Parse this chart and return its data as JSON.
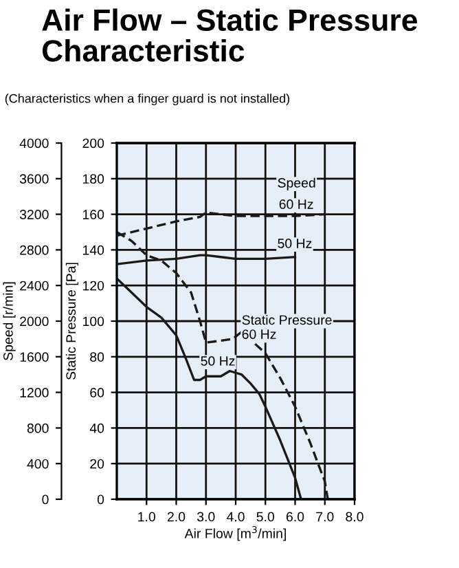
{
  "chart_data": {
    "type": "line",
    "title": "Air Flow – Static Pressure\nCharacteristic",
    "subtitle": "(Characteristics when a finger guard is not installed)",
    "xlabel": "Air Flow [m$^{3}$/min]",
    "ylabel": "Static Pressure [Pa]",
    "y2label": "Speed [r/min]",
    "annotations": [
      "Speed",
      "Static Pressure"
    ],
    "xlim": [
      0,
      8
    ],
    "xticks": [
      {
        "value": 1,
        "label": "1.0"
      },
      {
        "value": 2,
        "label": "2.0"
      },
      {
        "value": 3,
        "label": "3.0"
      },
      {
        "value": 4,
        "label": "4.0"
      },
      {
        "value": 5,
        "label": "5.0"
      },
      {
        "value": 6,
        "label": "6.0"
      },
      {
        "value": 7,
        "label": "7.0"
      },
      {
        "value": 8,
        "label": "8.0"
      }
    ],
    "ylim": [
      0,
      200
    ],
    "yticks": [
      0,
      20,
      40,
      60,
      80,
      100,
      120,
      140,
      160,
      180,
      200
    ],
    "y2lim": [
      0,
      4000
    ],
    "y2ticks": [
      0,
      400,
      800,
      1200,
      1600,
      2000,
      2400,
      2800,
      3200,
      3600,
      4000
    ],
    "grid": true,
    "legend": false,
    "series": [
      {
        "name": "60 Hz",
        "axis": "y2",
        "color": "#1a1a1a",
        "line_style": "dashed",
        "x": [
          0,
          1,
          2,
          2.8,
          3.0,
          3.5,
          4.0,
          5.0,
          6.0,
          7.0
        ],
        "values": [
          2960,
          3040,
          3120,
          3170,
          3220,
          3200,
          3180,
          3180,
          3180,
          3200
        ]
      },
      {
        "name": "50 Hz",
        "axis": "y2",
        "color": "#1a1a1a",
        "line_style": "solid",
        "x": [
          0,
          1,
          2,
          2.8,
          3.0,
          3.5,
          4.0,
          5.0,
          6.0
        ],
        "values": [
          2640,
          2680,
          2700,
          2740,
          2740,
          2720,
          2700,
          2700,
          2720
        ]
      },
      {
        "name": "60 Hz",
        "color": "#1a1a1a",
        "line_style": "dashed",
        "x": [
          0,
          0.5,
          1,
          1.5,
          2,
          2.5,
          2.8,
          3.0,
          3.5,
          3.9,
          4.2,
          4.6,
          5.0,
          5.5,
          6.0,
          6.5,
          7.0,
          7.1
        ],
        "values": [
          150,
          145,
          137,
          134,
          127,
          116,
          100,
          88,
          89,
          90,
          94,
          88,
          82,
          68,
          52,
          32,
          10,
          0
        ]
      },
      {
        "name": "50 Hz",
        "color": "#1a1a1a",
        "line_style": "solid",
        "x": [
          0,
          0.5,
          1,
          1.5,
          2,
          2.3,
          2.6,
          2.8,
          3.0,
          3.5,
          3.8,
          4.2,
          4.5,
          4.8,
          5.0,
          5.5,
          6.0,
          6.2
        ],
        "values": [
          124,
          116,
          108,
          102,
          92,
          80,
          67,
          67,
          69,
          69,
          72,
          70,
          65,
          59,
          52,
          33,
          12,
          0
        ]
      }
    ]
  }
}
